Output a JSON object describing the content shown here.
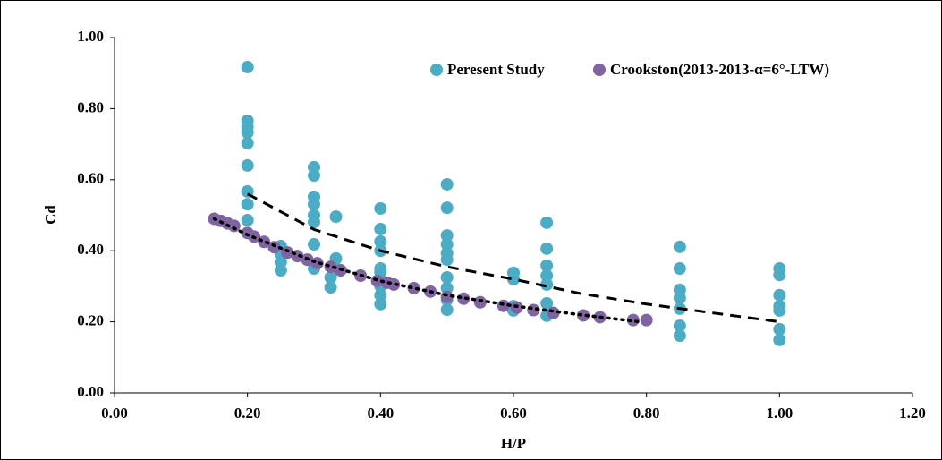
{
  "chart_data": {
    "type": "scatter",
    "x_label": "H/P",
    "y_label": "Cd",
    "xlim": [
      0,
      1.2
    ],
    "ylim": [
      0,
      1
    ],
    "xticks": [
      {
        "value": 0,
        "label": "0.00"
      },
      {
        "value": 0.2,
        "label": "0.20"
      },
      {
        "value": 0.4,
        "label": "0.40"
      },
      {
        "value": 0.6,
        "label": "0.60"
      },
      {
        "value": 0.8,
        "label": "0.80"
      },
      {
        "value": 1,
        "label": "1.00"
      },
      {
        "value": 1.2,
        "label": "1.20"
      }
    ],
    "yticks": [
      {
        "value": 0,
        "label": "0.00"
      },
      {
        "value": 0.2,
        "label": "0.20"
      },
      {
        "value": 0.4,
        "label": "0.40"
      },
      {
        "value": 0.6,
        "label": "0.60"
      },
      {
        "value": 0.8,
        "label": "0.80"
      },
      {
        "value": 1,
        "label": "1.00"
      }
    ],
    "series": [
      {
        "name": "Peresent Study",
        "color": "#4bacc6",
        "x": [
          0.2,
          0.2,
          0.2,
          0.2,
          0.2,
          0.2,
          0.2,
          0.2,
          0.2,
          0.25,
          0.25,
          0.25,
          0.25,
          0.3,
          0.3,
          0.3,
          0.3,
          0.3,
          0.3,
          0.3,
          0.3,
          0.325,
          0.325,
          0.333,
          0.333,
          0.333,
          0.4,
          0.4,
          0.4,
          0.4,
          0.4,
          0.4,
          0.4,
          0.4,
          0.4,
          0.5,
          0.5,
          0.5,
          0.5,
          0.5,
          0.5,
          0.5,
          0.5,
          0.5,
          0.5,
          0.6,
          0.6,
          0.6,
          0.6,
          0.65,
          0.65,
          0.65,
          0.65,
          0.65,
          0.65,
          0.65,
          0.85,
          0.85,
          0.85,
          0.85,
          0.85,
          0.85,
          0.85,
          1,
          1,
          1,
          1,
          1,
          1,
          1
        ],
        "y": [
          0.917,
          0.766,
          0.748,
          0.733,
          0.703,
          0.64,
          0.567,
          0.531,
          0.486,
          0.413,
          0.388,
          0.368,
          0.345,
          0.635,
          0.612,
          0.552,
          0.531,
          0.5,
          0.481,
          0.418,
          0.35,
          0.325,
          0.297,
          0.496,
          0.378,
          0.35,
          0.519,
          0.461,
          0.426,
          0.4,
          0.35,
          0.34,
          0.3,
          0.275,
          0.25,
          0.587,
          0.521,
          0.443,
          0.418,
          0.393,
          0.375,
          0.325,
          0.295,
          0.262,
          0.234,
          0.338,
          0.32,
          0.244,
          0.232,
          0.479,
          0.406,
          0.358,
          0.33,
          0.305,
          0.252,
          0.217,
          0.411,
          0.35,
          0.29,
          0.267,
          0.237,
          0.189,
          0.161,
          0.35,
          0.332,
          0.275,
          0.244,
          0.232,
          0.179,
          0.149
        ]
      },
      {
        "name": "Crookston(2013-2013-α=6°-LTW)",
        "color": "#8064a2",
        "x": [
          0.15,
          0.16,
          0.17,
          0.18,
          0.2,
          0.21,
          0.225,
          0.24,
          0.26,
          0.275,
          0.29,
          0.305,
          0.325,
          0.34,
          0.37,
          0.395,
          0.41,
          0.42,
          0.45,
          0.475,
          0.5,
          0.525,
          0.55,
          0.585,
          0.605,
          0.63,
          0.66,
          0.705,
          0.73,
          0.78,
          0.8
        ],
        "y": [
          0.49,
          0.484,
          0.477,
          0.47,
          0.45,
          0.44,
          0.425,
          0.41,
          0.395,
          0.385,
          0.375,
          0.365,
          0.355,
          0.345,
          0.33,
          0.315,
          0.31,
          0.305,
          0.295,
          0.285,
          0.27,
          0.265,
          0.255,
          0.245,
          0.24,
          0.233,
          0.225,
          0.218,
          0.213,
          0.205,
          0.205
        ]
      }
    ],
    "trendlines": [
      {
        "style": "dashed",
        "color": "#000000",
        "x": [
          0.2,
          0.3,
          0.4,
          0.5,
          0.6,
          0.7,
          0.8,
          0.9,
          1.0
        ],
        "y": [
          0.56,
          0.46,
          0.4,
          0.355,
          0.32,
          0.28,
          0.25,
          0.225,
          0.2
        ]
      },
      {
        "style": "dotted",
        "color": "#000000",
        "x": [
          0.15,
          0.2,
          0.3,
          0.4,
          0.5,
          0.6,
          0.7,
          0.79
        ],
        "y": [
          0.49,
          0.445,
          0.37,
          0.315,
          0.275,
          0.245,
          0.22,
          0.2
        ]
      }
    ]
  }
}
